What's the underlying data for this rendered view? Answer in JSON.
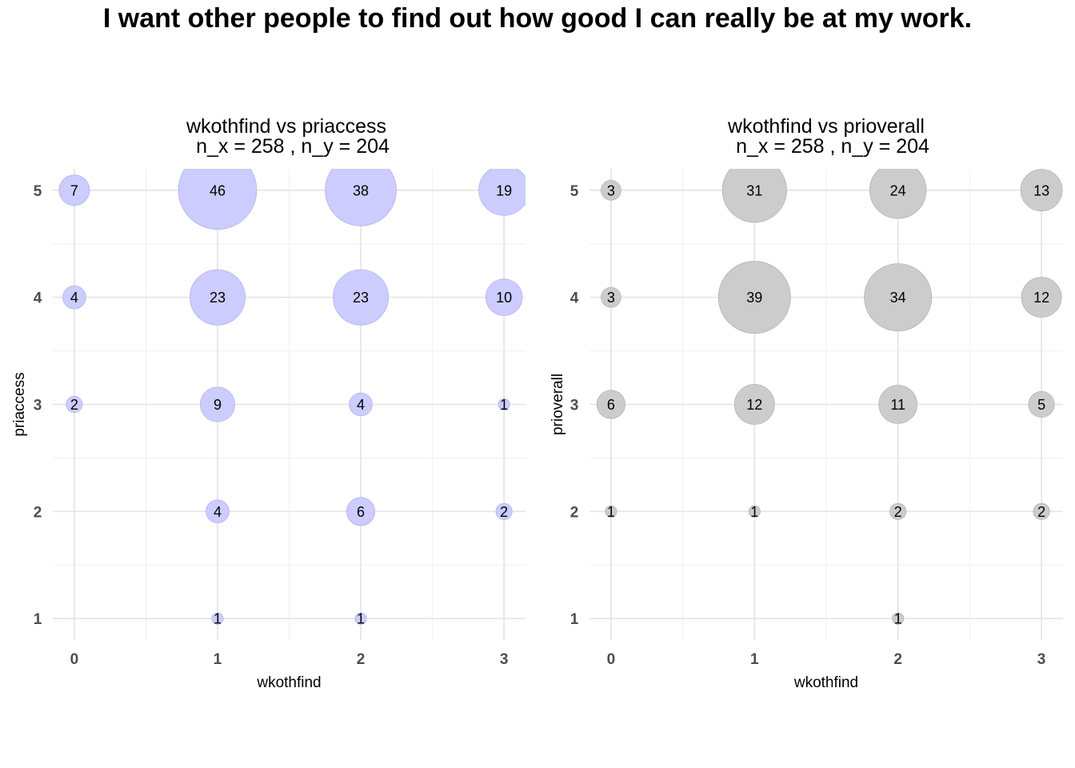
{
  "title": "I want other people to find out how good I can really be at my work.",
  "chart_data": [
    {
      "type": "scatter",
      "title": "wkothfind vs priaccess",
      "subtitle": "n_x = 258 , n_y = 204",
      "xlabel": "wkothfind",
      "ylabel": "priaccess",
      "x_ticks": [
        0,
        1,
        2,
        3
      ],
      "y_ticks": [
        1,
        2,
        3,
        4,
        5
      ],
      "xlim": [
        -0.15,
        3.15
      ],
      "ylim": [
        0.8,
        5.2
      ],
      "grid": true,
      "color": "#ccccff",
      "stroke": "#a8a8e8",
      "points": [
        {
          "x": 0,
          "y": 5,
          "n": 7
        },
        {
          "x": 1,
          "y": 5,
          "n": 46
        },
        {
          "x": 2,
          "y": 5,
          "n": 38
        },
        {
          "x": 3,
          "y": 5,
          "n": 19
        },
        {
          "x": 0,
          "y": 4,
          "n": 4
        },
        {
          "x": 1,
          "y": 4,
          "n": 23
        },
        {
          "x": 2,
          "y": 4,
          "n": 23
        },
        {
          "x": 3,
          "y": 4,
          "n": 10
        },
        {
          "x": 0,
          "y": 3,
          "n": 2
        },
        {
          "x": 1,
          "y": 3,
          "n": 9
        },
        {
          "x": 2,
          "y": 3,
          "n": 4
        },
        {
          "x": 3,
          "y": 3,
          "n": 1
        },
        {
          "x": 1,
          "y": 2,
          "n": 4
        },
        {
          "x": 2,
          "y": 2,
          "n": 6
        },
        {
          "x": 3,
          "y": 2,
          "n": 2
        },
        {
          "x": 1,
          "y": 1,
          "n": 1
        },
        {
          "x": 2,
          "y": 1,
          "n": 1
        }
      ]
    },
    {
      "type": "scatter",
      "title": "wkothfind vs prioverall",
      "subtitle": "n_x = 258 , n_y = 204",
      "xlabel": "wkothfind",
      "ylabel": "prioverall",
      "x_ticks": [
        0,
        1,
        2,
        3
      ],
      "y_ticks": [
        1,
        2,
        3,
        4,
        5
      ],
      "xlim": [
        -0.15,
        3.15
      ],
      "ylim": [
        0.8,
        5.2
      ],
      "grid": true,
      "color": "#cccccc",
      "stroke": "#a8a8a8",
      "points": [
        {
          "x": 0,
          "y": 5,
          "n": 3
        },
        {
          "x": 1,
          "y": 5,
          "n": 31
        },
        {
          "x": 2,
          "y": 5,
          "n": 24
        },
        {
          "x": 3,
          "y": 5,
          "n": 13
        },
        {
          "x": 0,
          "y": 4,
          "n": 3
        },
        {
          "x": 1,
          "y": 4,
          "n": 39
        },
        {
          "x": 2,
          "y": 4,
          "n": 34
        },
        {
          "x": 3,
          "y": 4,
          "n": 12
        },
        {
          "x": 0,
          "y": 3,
          "n": 6
        },
        {
          "x": 1,
          "y": 3,
          "n": 12
        },
        {
          "x": 2,
          "y": 3,
          "n": 11
        },
        {
          "x": 3,
          "y": 3,
          "n": 5
        },
        {
          "x": 0,
          "y": 2,
          "n": 1
        },
        {
          "x": 1,
          "y": 2,
          "n": 1
        },
        {
          "x": 2,
          "y": 2,
          "n": 2
        },
        {
          "x": 3,
          "y": 2,
          "n": 2
        },
        {
          "x": 2,
          "y": 1,
          "n": 1
        }
      ]
    }
  ]
}
